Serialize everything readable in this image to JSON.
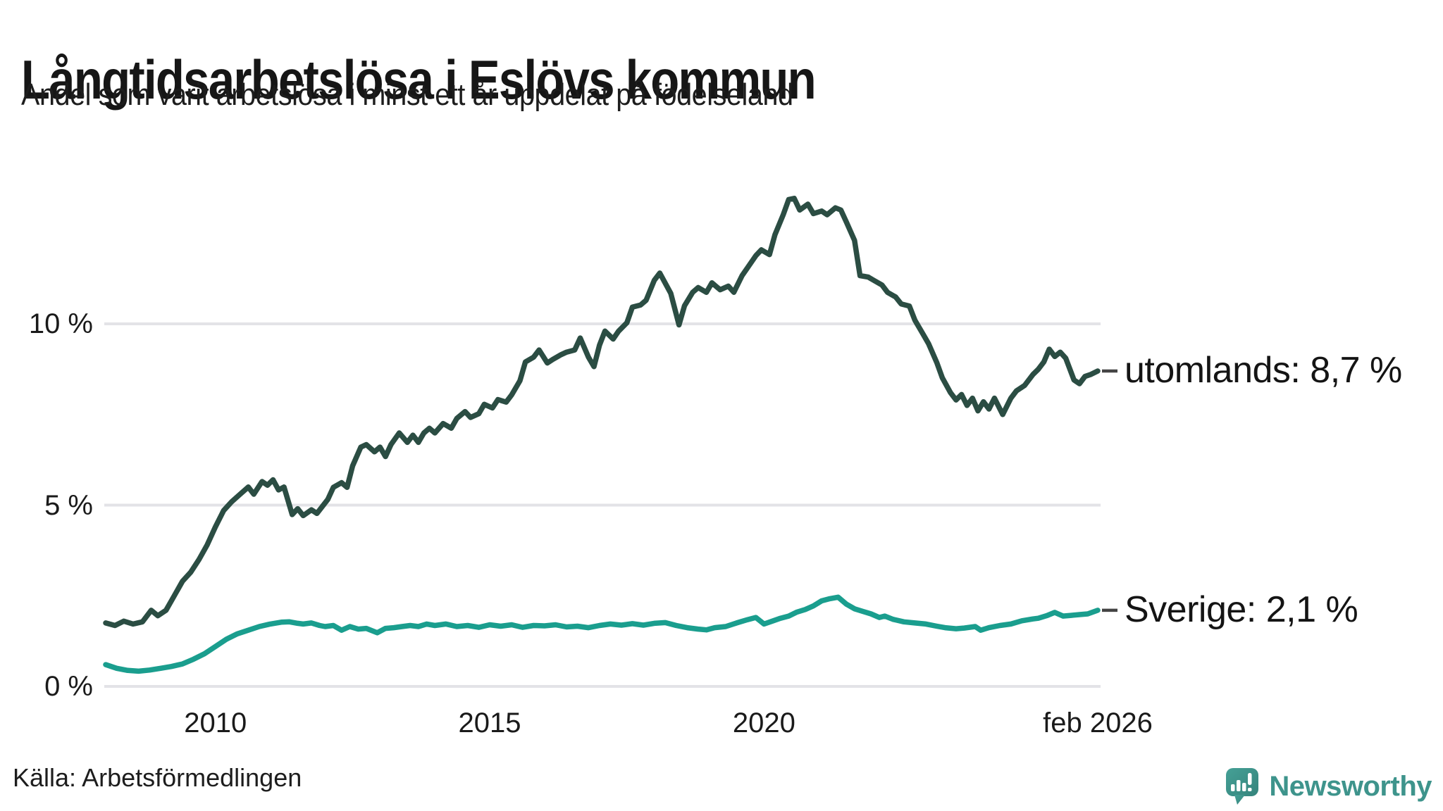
{
  "title": "Långtidsarbetslösa i Eslövs kommun",
  "subtitle": "Andel som varit arbetslösa i minst ett år uppdelat på födelseland",
  "source": "Källa: Arbetsförmedlingen",
  "branding": {
    "name": "Newsworthy",
    "color": "#3e948c"
  },
  "colors": {
    "background": "#ffffff",
    "grid": "#e3e3e7",
    "text": "#1a1a1a",
    "label_dash": "#444444",
    "utomlands_line": "#2b4d43",
    "sverige_line": "#1a9e8e"
  },
  "chart_data": {
    "type": "line",
    "title": "Långtidsarbetslösa i Eslövs kommun",
    "subtitle": "Andel som varit arbetslösa i minst ett år uppdelat på födelseland",
    "x_unit": "decimal_year",
    "x_range": [
      2008.0,
      2026.083
    ],
    "y_range": [
      0,
      14
    ],
    "grid": "horizontal",
    "legend_position": "right-end-labels",
    "y_ticks": [
      {
        "value": 0,
        "label": "0 %"
      },
      {
        "value": 5,
        "label": "5 %"
      },
      {
        "value": 10,
        "label": "10 %"
      }
    ],
    "x_ticks": [
      {
        "value": 2010,
        "label": "2010"
      },
      {
        "value": 2015,
        "label": "2015"
      },
      {
        "value": 2020,
        "label": "2020"
      },
      {
        "value": 2026.083,
        "label": "feb 2026"
      }
    ],
    "series": [
      {
        "name": "utomlands",
        "end_label": "utomlands: 8,7 %",
        "last_value": 8.7,
        "color": "#2b4d43",
        "points": [
          [
            2008.0,
            1.75
          ],
          [
            2008.17,
            1.68
          ],
          [
            2008.33,
            1.8
          ],
          [
            2008.5,
            1.72
          ],
          [
            2008.67,
            1.78
          ],
          [
            2008.83,
            2.1
          ],
          [
            2008.95,
            1.95
          ],
          [
            2009.1,
            2.1
          ],
          [
            2009.25,
            2.5
          ],
          [
            2009.4,
            2.9
          ],
          [
            2009.55,
            3.15
          ],
          [
            2009.7,
            3.5
          ],
          [
            2009.85,
            3.9
          ],
          [
            2010.0,
            4.4
          ],
          [
            2010.15,
            4.85
          ],
          [
            2010.3,
            5.1
          ],
          [
            2010.45,
            5.3
          ],
          [
            2010.6,
            5.5
          ],
          [
            2010.7,
            5.3
          ],
          [
            2010.85,
            5.65
          ],
          [
            2010.95,
            5.55
          ],
          [
            2011.05,
            5.7
          ],
          [
            2011.15,
            5.42
          ],
          [
            2011.25,
            5.5
          ],
          [
            2011.4,
            4.74
          ],
          [
            2011.5,
            4.9
          ],
          [
            2011.6,
            4.71
          ],
          [
            2011.75,
            4.87
          ],
          [
            2011.85,
            4.77
          ],
          [
            2012.05,
            5.16
          ],
          [
            2012.15,
            5.49
          ],
          [
            2012.3,
            5.62
          ],
          [
            2012.4,
            5.49
          ],
          [
            2012.5,
            6.08
          ],
          [
            2012.65,
            6.6
          ],
          [
            2012.75,
            6.67
          ],
          [
            2012.9,
            6.47
          ],
          [
            2013.0,
            6.6
          ],
          [
            2013.1,
            6.34
          ],
          [
            2013.2,
            6.67
          ],
          [
            2013.35,
            6.99
          ],
          [
            2013.5,
            6.73
          ],
          [
            2013.6,
            6.93
          ],
          [
            2013.7,
            6.73
          ],
          [
            2013.8,
            6.99
          ],
          [
            2013.9,
            7.12
          ],
          [
            2014.0,
            6.99
          ],
          [
            2014.15,
            7.25
          ],
          [
            2014.3,
            7.12
          ],
          [
            2014.4,
            7.39
          ],
          [
            2014.55,
            7.58
          ],
          [
            2014.65,
            7.42
          ],
          [
            2014.8,
            7.52
          ],
          [
            2014.9,
            7.78
          ],
          [
            2015.05,
            7.68
          ],
          [
            2015.15,
            7.91
          ],
          [
            2015.3,
            7.84
          ],
          [
            2015.4,
            8.04
          ],
          [
            2015.55,
            8.43
          ],
          [
            2015.65,
            8.95
          ],
          [
            2015.8,
            9.08
          ],
          [
            2015.9,
            9.28
          ],
          [
            2016.05,
            8.92
          ],
          [
            2016.15,
            9.02
          ],
          [
            2016.3,
            9.15
          ],
          [
            2016.4,
            9.22
          ],
          [
            2016.55,
            9.28
          ],
          [
            2016.65,
            9.61
          ],
          [
            2016.8,
            9.08
          ],
          [
            2016.9,
            8.82
          ],
          [
            2017.0,
            9.41
          ],
          [
            2017.1,
            9.8
          ],
          [
            2017.25,
            9.58
          ],
          [
            2017.35,
            9.8
          ],
          [
            2017.5,
            10.03
          ],
          [
            2017.6,
            10.46
          ],
          [
            2017.75,
            10.52
          ],
          [
            2017.85,
            10.65
          ],
          [
            2018.0,
            11.2
          ],
          [
            2018.1,
            11.4
          ],
          [
            2018.3,
            10.84
          ],
          [
            2018.45,
            9.97
          ],
          [
            2018.55,
            10.5
          ],
          [
            2018.7,
            10.87
          ],
          [
            2018.8,
            11.0
          ],
          [
            2018.95,
            10.87
          ],
          [
            2019.05,
            11.13
          ],
          [
            2019.2,
            10.94
          ],
          [
            2019.35,
            11.04
          ],
          [
            2019.45,
            10.87
          ],
          [
            2019.6,
            11.33
          ],
          [
            2019.7,
            11.55
          ],
          [
            2019.85,
            11.88
          ],
          [
            2019.95,
            12.04
          ],
          [
            2020.1,
            11.91
          ],
          [
            2020.2,
            12.46
          ],
          [
            2020.35,
            13.01
          ],
          [
            2020.45,
            13.43
          ],
          [
            2020.55,
            13.46
          ],
          [
            2020.65,
            13.14
          ],
          [
            2020.8,
            13.3
          ],
          [
            2020.9,
            13.04
          ],
          [
            2021.05,
            13.11
          ],
          [
            2021.15,
            13.01
          ],
          [
            2021.3,
            13.2
          ],
          [
            2021.4,
            13.14
          ],
          [
            2021.5,
            12.81
          ],
          [
            2021.65,
            12.3
          ],
          [
            2021.75,
            11.33
          ],
          [
            2021.9,
            11.29
          ],
          [
            2022.0,
            11.2
          ],
          [
            2022.15,
            11.07
          ],
          [
            2022.25,
            10.87
          ],
          [
            2022.4,
            10.74
          ],
          [
            2022.5,
            10.55
          ],
          [
            2022.65,
            10.49
          ],
          [
            2022.75,
            10.1
          ],
          [
            2022.9,
            9.71
          ],
          [
            2023.0,
            9.45
          ],
          [
            2023.15,
            8.93
          ],
          [
            2023.25,
            8.51
          ],
          [
            2023.4,
            8.1
          ],
          [
            2023.5,
            7.9
          ],
          [
            2023.6,
            8.05
          ],
          [
            2023.7,
            7.75
          ],
          [
            2023.8,
            7.95
          ],
          [
            2023.9,
            7.6
          ],
          [
            2024.0,
            7.85
          ],
          [
            2024.1,
            7.65
          ],
          [
            2024.2,
            7.95
          ],
          [
            2024.35,
            7.5
          ],
          [
            2024.5,
            7.95
          ],
          [
            2024.6,
            8.15
          ],
          [
            2024.75,
            8.3
          ],
          [
            2024.9,
            8.6
          ],
          [
            2025.0,
            8.75
          ],
          [
            2025.1,
            8.95
          ],
          [
            2025.2,
            9.3
          ],
          [
            2025.3,
            9.1
          ],
          [
            2025.4,
            9.22
          ],
          [
            2025.5,
            9.05
          ],
          [
            2025.65,
            8.45
          ],
          [
            2025.75,
            8.35
          ],
          [
            2025.85,
            8.55
          ],
          [
            2025.95,
            8.6
          ],
          [
            2026.083,
            8.7
          ]
        ]
      },
      {
        "name": "Sverige",
        "end_label": "Sverige: 2,1 %",
        "last_value": 2.1,
        "color": "#1a9e8e",
        "points": [
          [
            2008.0,
            0.6
          ],
          [
            2008.2,
            0.5
          ],
          [
            2008.4,
            0.44
          ],
          [
            2008.6,
            0.42
          ],
          [
            2008.8,
            0.45
          ],
          [
            2009.0,
            0.5
          ],
          [
            2009.2,
            0.55
          ],
          [
            2009.4,
            0.62
          ],
          [
            2009.6,
            0.75
          ],
          [
            2009.8,
            0.9
          ],
          [
            2010.0,
            1.1
          ],
          [
            2010.2,
            1.3
          ],
          [
            2010.4,
            1.45
          ],
          [
            2010.6,
            1.55
          ],
          [
            2010.8,
            1.65
          ],
          [
            2011.0,
            1.72
          ],
          [
            2011.2,
            1.77
          ],
          [
            2011.35,
            1.78
          ],
          [
            2011.5,
            1.74
          ],
          [
            2011.6,
            1.72
          ],
          [
            2011.75,
            1.75
          ],
          [
            2011.9,
            1.68
          ],
          [
            2012.0,
            1.65
          ],
          [
            2012.15,
            1.68
          ],
          [
            2012.3,
            1.55
          ],
          [
            2012.45,
            1.65
          ],
          [
            2012.6,
            1.58
          ],
          [
            2012.75,
            1.6
          ],
          [
            2012.95,
            1.48
          ],
          [
            2013.1,
            1.6
          ],
          [
            2013.25,
            1.62
          ],
          [
            2013.4,
            1.65
          ],
          [
            2013.55,
            1.68
          ],
          [
            2013.7,
            1.65
          ],
          [
            2013.85,
            1.72
          ],
          [
            2014.0,
            1.68
          ],
          [
            2014.2,
            1.72
          ],
          [
            2014.4,
            1.65
          ],
          [
            2014.6,
            1.68
          ],
          [
            2014.8,
            1.63
          ],
          [
            2015.0,
            1.7
          ],
          [
            2015.2,
            1.66
          ],
          [
            2015.4,
            1.7
          ],
          [
            2015.6,
            1.63
          ],
          [
            2015.8,
            1.68
          ],
          [
            2016.0,
            1.67
          ],
          [
            2016.2,
            1.7
          ],
          [
            2016.4,
            1.64
          ],
          [
            2016.6,
            1.66
          ],
          [
            2016.8,
            1.62
          ],
          [
            2017.0,
            1.68
          ],
          [
            2017.2,
            1.72
          ],
          [
            2017.4,
            1.69
          ],
          [
            2017.6,
            1.73
          ],
          [
            2017.8,
            1.69
          ],
          [
            2018.0,
            1.74
          ],
          [
            2018.2,
            1.76
          ],
          [
            2018.4,
            1.68
          ],
          [
            2018.6,
            1.62
          ],
          [
            2018.8,
            1.58
          ],
          [
            2018.95,
            1.56
          ],
          [
            2019.1,
            1.62
          ],
          [
            2019.3,
            1.65
          ],
          [
            2019.5,
            1.75
          ],
          [
            2019.7,
            1.84
          ],
          [
            2019.85,
            1.9
          ],
          [
            2020.0,
            1.72
          ],
          [
            2020.15,
            1.8
          ],
          [
            2020.3,
            1.88
          ],
          [
            2020.45,
            1.94
          ],
          [
            2020.6,
            2.05
          ],
          [
            2020.75,
            2.12
          ],
          [
            2020.9,
            2.22
          ],
          [
            2021.05,
            2.36
          ],
          [
            2021.2,
            2.42
          ],
          [
            2021.35,
            2.46
          ],
          [
            2021.5,
            2.27
          ],
          [
            2021.65,
            2.14
          ],
          [
            2021.8,
            2.07
          ],
          [
            2021.95,
            2.0
          ],
          [
            2022.1,
            1.9
          ],
          [
            2022.2,
            1.94
          ],
          [
            2022.35,
            1.85
          ],
          [
            2022.55,
            1.78
          ],
          [
            2022.75,
            1.75
          ],
          [
            2022.95,
            1.72
          ],
          [
            2023.15,
            1.66
          ],
          [
            2023.3,
            1.62
          ],
          [
            2023.5,
            1.59
          ],
          [
            2023.65,
            1.61
          ],
          [
            2023.85,
            1.65
          ],
          [
            2023.95,
            1.55
          ],
          [
            2024.1,
            1.62
          ],
          [
            2024.3,
            1.68
          ],
          [
            2024.5,
            1.72
          ],
          [
            2024.7,
            1.81
          ],
          [
            2024.9,
            1.86
          ],
          [
            2025.0,
            1.88
          ],
          [
            2025.15,
            1.95
          ],
          [
            2025.3,
            2.04
          ],
          [
            2025.45,
            1.94
          ],
          [
            2025.6,
            1.96
          ],
          [
            2025.75,
            1.98
          ],
          [
            2025.9,
            2.0
          ],
          [
            2026.083,
            2.1
          ]
        ]
      }
    ]
  }
}
